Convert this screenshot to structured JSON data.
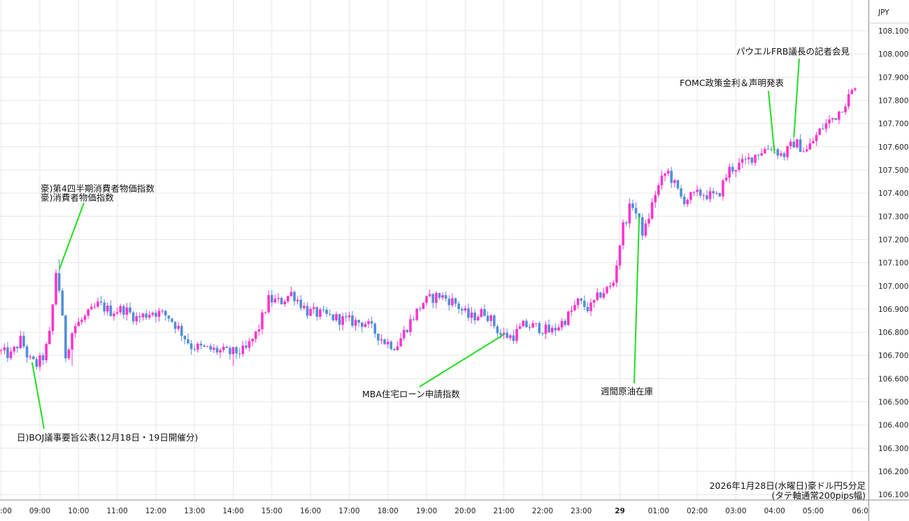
{
  "chart_data": {
    "type": "candlestick",
    "currency_label": "JPY",
    "footnote": [
      "2026年1月28日(水曜日)豪ドル円5分足",
      "(タテ軸通常200pips幅)"
    ],
    "ylim": [
      106.06,
      108.2
    ],
    "y_ticks": [
      "108.100",
      "108.000",
      "107.900",
      "107.800",
      "107.700",
      "107.600",
      "107.500",
      "107.400",
      "107.300",
      "107.200",
      "107.100",
      "107.000",
      "106.900",
      "106.800",
      "106.700",
      "106.600",
      "106.500",
      "106.400",
      "106.300",
      "106.200",
      "106.100"
    ],
    "x_ticks": [
      ":00",
      "09:00",
      "10:00",
      "11:00",
      "12:00",
      "13:00",
      "14:00",
      "15:00",
      "16:00",
      "17:00",
      "18:00",
      "19:00",
      "20:00",
      "21:00",
      "22:00",
      "23:00",
      "29",
      "01:00",
      "02:00",
      "03:00",
      "04:00",
      "05:00",
      "06:0"
    ],
    "x_tick_bold": "29",
    "colors": {
      "up": "#ff33cc",
      "down": "#4f8fd8",
      "annotation_line": "#22dd22",
      "grid": "#e6e6e6"
    },
    "annotations": [
      {
        "lines": [
          "豪)第4四半期消費者物価指数",
          "豪)消費者物価指数"
        ],
        "time": 9.5,
        "price": 107.07
      },
      {
        "lines": [
          "日)BOJ議事要旨公表(12月18日・19日開催分)"
        ],
        "time": 8.8,
        "price": 106.67
      },
      {
        "lines": [
          "MBA住宅ローン申請指数"
        ],
        "time": 21.0,
        "price": 106.79
      },
      {
        "lines": [
          "週間原油在庫"
        ],
        "time": 24.5,
        "price": 107.3
      },
      {
        "lines": [
          "FOMC政策金利＆声明発表"
        ],
        "time": 28.0,
        "price": 107.57
      },
      {
        "lines": [
          "パウエルFRB議長の記者会見"
        ],
        "time": 28.5,
        "price": 107.64
      }
    ],
    "knots": [
      [
        8.0,
        106.72
      ],
      [
        8.33,
        106.7
      ],
      [
        8.6,
        106.77
      ],
      [
        8.8,
        106.68
      ],
      [
        9.0,
        106.66
      ],
      [
        9.2,
        106.7
      ],
      [
        9.35,
        106.8
      ],
      [
        9.5,
        107.06
      ],
      [
        9.6,
        106.97
      ],
      [
        9.75,
        106.7
      ],
      [
        9.95,
        106.82
      ],
      [
        10.3,
        106.87
      ],
      [
        10.6,
        106.92
      ],
      [
        10.9,
        106.89
      ],
      [
        11.25,
        106.9
      ],
      [
        11.6,
        106.86
      ],
      [
        12.0,
        106.89
      ],
      [
        12.4,
        106.87
      ],
      [
        12.7,
        106.81
      ],
      [
        13.0,
        106.74
      ],
      [
        13.3,
        106.73
      ],
      [
        13.7,
        106.72
      ],
      [
        14.0,
        106.71
      ],
      [
        14.4,
        106.72
      ],
      [
        14.7,
        106.8
      ],
      [
        15.0,
        106.94
      ],
      [
        15.3,
        106.93
      ],
      [
        15.6,
        106.97
      ],
      [
        16.0,
        106.89
      ],
      [
        16.5,
        106.87
      ],
      [
        17.0,
        106.85
      ],
      [
        17.5,
        106.84
      ],
      [
        18.0,
        106.76
      ],
      [
        18.3,
        106.74
      ],
      [
        18.6,
        106.83
      ],
      [
        19.0,
        106.93
      ],
      [
        19.4,
        106.96
      ],
      [
        19.8,
        106.93
      ],
      [
        20.2,
        106.86
      ],
      [
        20.6,
        106.89
      ],
      [
        21.0,
        106.79
      ],
      [
        21.3,
        106.78
      ],
      [
        21.6,
        106.83
      ],
      [
        22.0,
        106.82
      ],
      [
        22.3,
        106.8
      ],
      [
        22.7,
        106.86
      ],
      [
        23.0,
        106.93
      ],
      [
        23.3,
        106.9
      ],
      [
        23.6,
        106.97
      ],
      [
        23.9,
        107.0
      ],
      [
        24.15,
        107.25
      ],
      [
        24.4,
        107.36
      ],
      [
        24.7,
        107.22
      ],
      [
        25.0,
        107.4
      ],
      [
        25.3,
        107.5
      ],
      [
        25.7,
        107.37
      ],
      [
        26.2,
        107.4
      ],
      [
        26.6,
        107.38
      ],
      [
        26.9,
        107.5
      ],
      [
        27.3,
        107.53
      ],
      [
        27.7,
        107.58
      ],
      [
        28.0,
        107.6
      ],
      [
        28.3,
        107.56
      ],
      [
        28.6,
        107.62
      ],
      [
        28.9,
        107.58
      ],
      [
        29.3,
        107.68
      ],
      [
        29.7,
        107.74
      ],
      [
        30.1,
        107.84
      ]
    ]
  }
}
